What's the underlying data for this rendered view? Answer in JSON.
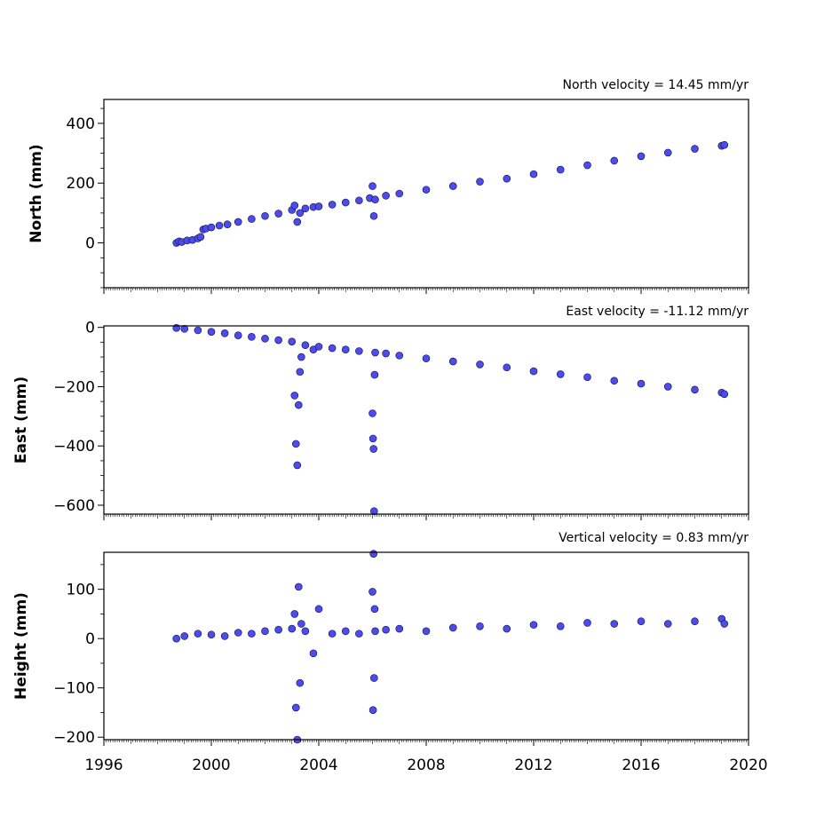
{
  "chart_data": [
    {
      "type": "scatter",
      "title": "North velocity = 14.45 mm/yr",
      "xlabel": "",
      "ylabel": "North (mm)",
      "xlim": [
        1996,
        2020
      ],
      "ylim": [
        -150,
        480
      ],
      "yticks": [
        0,
        200,
        400
      ],
      "ytick_labels": [
        "0",
        "200",
        "400"
      ],
      "grid": false,
      "marker_color": "#4b4bf0",
      "marker_edge": "#111133",
      "series": [
        {
          "x": [
            1998.7,
            1998.8,
            1998.9,
            1999.1,
            1999.3,
            1999.5,
            1999.6,
            1999.7,
            1999.8,
            2000.0,
            2000.3,
            2000.6,
            2001.0,
            2001.5,
            2002.0,
            2002.5,
            2003.0,
            2003.1,
            2003.2,
            2003.3,
            2003.5,
            2003.8,
            2004.0,
            2004.5,
            2005.0,
            2005.5,
            2005.9,
            2006.0,
            2006.05,
            2006.1,
            2006.5,
            2007.0,
            2008.0,
            2009.0,
            2010.0,
            2011.0,
            2012.0,
            2013.0,
            2014.0,
            2015.0,
            2016.0,
            2017.0,
            2018.0,
            2019.0,
            2019.1
          ],
          "y": [
            0,
            5,
            3,
            8,
            10,
            15,
            20,
            45,
            48,
            52,
            58,
            62,
            70,
            80,
            90,
            98,
            110,
            125,
            70,
            100,
            115,
            120,
            122,
            128,
            135,
            142,
            150,
            190,
            90,
            145,
            158,
            165,
            178,
            190,
            205,
            215,
            230,
            245,
            260,
            275,
            290,
            302,
            315,
            325,
            328
          ]
        }
      ]
    },
    {
      "type": "scatter",
      "title": "East velocity = -11.12 mm/yr",
      "xlabel": "",
      "ylabel": "East (mm)",
      "xlim": [
        1996,
        2020
      ],
      "ylim": [
        -630,
        5
      ],
      "yticks": [
        0,
        -200,
        -400,
        -600
      ],
      "ytick_labels": [
        "0",
        "−200",
        "−400",
        "−600"
      ],
      "grid": false,
      "marker_color": "#4b4bf0",
      "marker_edge": "#111133",
      "series": [
        {
          "x": [
            1998.7,
            1999.0,
            1999.5,
            2000.0,
            2000.5,
            2001.0,
            2001.5,
            2002.0,
            2002.5,
            2003.0,
            2003.1,
            2003.15,
            2003.2,
            2003.25,
            2003.3,
            2003.35,
            2003.5,
            2003.8,
            2004.0,
            2004.5,
            2005.0,
            2005.5,
            2006.0,
            2006.02,
            2006.04,
            2006.06,
            2006.08,
            2006.1,
            2006.5,
            2007.0,
            2008.0,
            2009.0,
            2010.0,
            2011.0,
            2012.0,
            2013.0,
            2014.0,
            2015.0,
            2016.0,
            2017.0,
            2018.0,
            2019.0,
            2019.1
          ],
          "y": [
            -2,
            -5,
            -10,
            -15,
            -20,
            -27,
            -32,
            -38,
            -43,
            -48,
            -230,
            -393,
            -465,
            -262,
            -150,
            -100,
            -60,
            -75,
            -65,
            -70,
            -75,
            -80,
            -290,
            -375,
            -410,
            -620,
            -160,
            -85,
            -88,
            -95,
            -105,
            -115,
            -125,
            -135,
            -148,
            -158,
            -168,
            -180,
            -190,
            -200,
            -210,
            -220,
            -225
          ]
        }
      ]
    },
    {
      "type": "scatter",
      "title": "Vertical velocity = 0.83 mm/yr",
      "xlabel": "",
      "ylabel": "Height (mm)",
      "xlim": [
        1996,
        2020
      ],
      "ylim": [
        -205,
        175
      ],
      "yticks": [
        -200,
        -100,
        0,
        100
      ],
      "ytick_labels": [
        "−200",
        "−100",
        "0",
        "100"
      ],
      "xticks": [
        1996,
        2000,
        2004,
        2008,
        2012,
        2016,
        2020
      ],
      "xtick_labels": [
        "1996",
        "2000",
        "2004",
        "2008",
        "2012",
        "2016",
        "2020"
      ],
      "grid": false,
      "marker_color": "#4b4bf0",
      "marker_edge": "#111133",
      "series": [
        {
          "x": [
            1998.7,
            1999.0,
            1999.5,
            2000.0,
            2000.5,
            2001.0,
            2001.5,
            2002.0,
            2002.5,
            2003.0,
            2003.1,
            2003.15,
            2003.2,
            2003.25,
            2003.3,
            2003.35,
            2003.5,
            2003.8,
            2004.0,
            2004.5,
            2005.0,
            2005.5,
            2006.0,
            2006.02,
            2006.04,
            2006.06,
            2006.08,
            2006.1,
            2006.5,
            2007.0,
            2008.0,
            2009.0,
            2010.0,
            2011.0,
            2012.0,
            2013.0,
            2014.0,
            2015.0,
            2016.0,
            2017.0,
            2018.0,
            2019.0,
            2019.1
          ],
          "y": [
            0,
            5,
            10,
            8,
            5,
            12,
            10,
            15,
            18,
            20,
            50,
            -140,
            -205,
            105,
            -90,
            30,
            15,
            -30,
            60,
            10,
            15,
            10,
            95,
            -145,
            172,
            -80,
            60,
            15,
            18,
            20,
            15,
            22,
            25,
            20,
            28,
            25,
            32,
            30,
            35,
            30,
            35,
            40,
            30
          ]
        }
      ]
    }
  ]
}
